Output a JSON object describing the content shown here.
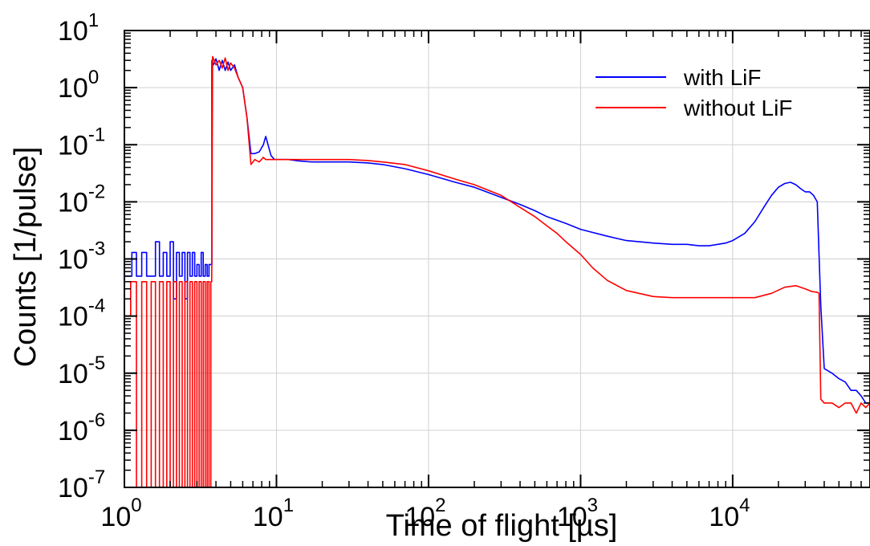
{
  "chart_data": {
    "type": "line",
    "xlabel": "Time of flight [µs]",
    "ylabel": "Counts [1/pulse]",
    "xscale": "log",
    "yscale": "log",
    "xlim": [
      1,
      80000
    ],
    "ylim": [
      1e-07,
      10
    ],
    "grid": true,
    "legend_position": "top-right",
    "x_ticks": [
      {
        "value": 1,
        "base": "10",
        "exp": "0"
      },
      {
        "value": 10,
        "base": "10",
        "exp": "1"
      },
      {
        "value": 100,
        "base": "10",
        "exp": "2"
      },
      {
        "value": 1000,
        "base": "10",
        "exp": "3"
      },
      {
        "value": 10000,
        "base": "10",
        "exp": "4"
      }
    ],
    "y_ticks": [
      {
        "value": 10,
        "base": "10",
        "exp": "1"
      },
      {
        "value": 1,
        "base": "10",
        "exp": "0"
      },
      {
        "value": 0.1,
        "base": "10",
        "exp": "-1"
      },
      {
        "value": 0.01,
        "base": "10",
        "exp": "-2"
      },
      {
        "value": 0.001,
        "base": "10",
        "exp": "-3"
      },
      {
        "value": 0.0001,
        "base": "10",
        "exp": "-4"
      },
      {
        "value": 1e-05,
        "base": "10",
        "exp": "-5"
      },
      {
        "value": 1e-06,
        "base": "10",
        "exp": "-6"
      },
      {
        "value": 1e-07,
        "base": "10",
        "exp": "-7"
      }
    ],
    "series": [
      {
        "name": "with LiF",
        "color": "#0000ff",
        "x": [
          1.0,
          1.12,
          1.2,
          1.3,
          1.4,
          1.5,
          1.6,
          1.7,
          1.8,
          1.9,
          2.0,
          2.1,
          2.2,
          2.3,
          2.4,
          2.5,
          2.6,
          2.7,
          2.8,
          2.9,
          3.0,
          3.1,
          3.2,
          3.3,
          3.4,
          3.5,
          3.6,
          3.75,
          3.76,
          3.85,
          4.0,
          4.2,
          4.4,
          4.6,
          4.8,
          5.0,
          5.3,
          5.6,
          6.0,
          6.4,
          6.8,
          7.2,
          7.7,
          8.2,
          8.5,
          8.8,
          9.2,
          9.7,
          10.5,
          12,
          14,
          17,
          20,
          25,
          30,
          40,
          50,
          70,
          100,
          150,
          200,
          300,
          400,
          500,
          600,
          800,
          1000,
          1500,
          2000,
          3000,
          4000,
          5000,
          6000,
          7000,
          8000,
          9000,
          10000,
          12000,
          14000,
          16000,
          18000,
          20000,
          22000,
          24000,
          26000,
          28000,
          30000,
          32000,
          34000,
          36000,
          37000,
          38000,
          40000,
          45000,
          50000,
          55000,
          60000,
          65000,
          70000,
          75000,
          80000
        ],
        "y": [
          0.0005,
          0.0013,
          0.0005,
          0.0013,
          0.0005,
          0.0005,
          0.002,
          0.0005,
          0.0013,
          0.0005,
          0.002,
          0.0002,
          0.0013,
          0.0005,
          0.0013,
          0.0002,
          0.0013,
          0.0005,
          0.0013,
          0.0005,
          0.0008,
          0.0005,
          0.0013,
          0.0005,
          0.0008,
          0.0005,
          0.0008,
          0.0008,
          3.0,
          2.5,
          3.2,
          2.0,
          3.0,
          2.0,
          2.8,
          2.0,
          2.5,
          1.5,
          1.0,
          0.3,
          0.07,
          0.07,
          0.075,
          0.1,
          0.14,
          0.1,
          0.065,
          0.055,
          0.055,
          0.055,
          0.052,
          0.05,
          0.05,
          0.05,
          0.05,
          0.048,
          0.045,
          0.038,
          0.03,
          0.022,
          0.018,
          0.012,
          0.009,
          0.007,
          0.0055,
          0.0042,
          0.0033,
          0.0025,
          0.0021,
          0.0019,
          0.0018,
          0.0018,
          0.0017,
          0.0017,
          0.0018,
          0.0019,
          0.0021,
          0.0028,
          0.0045,
          0.008,
          0.013,
          0.018,
          0.021,
          0.022,
          0.02,
          0.017,
          0.015,
          0.015,
          0.013,
          0.01,
          0.0012,
          0.00015,
          1.2e-05,
          1e-05,
          8e-06,
          7e-06,
          5e-06,
          5e-06,
          4e-06,
          3e-06,
          3e-06
        ]
      },
      {
        "name": "without LiF",
        "color": "#ff0000",
        "x": [
          1.0,
          1.1,
          1.2,
          1.3,
          1.4,
          1.5,
          1.6,
          1.7,
          1.8,
          1.9,
          2.0,
          2.1,
          2.2,
          2.3,
          2.4,
          2.5,
          2.6,
          2.7,
          2.8,
          2.9,
          3.0,
          3.1,
          3.2,
          3.3,
          3.4,
          3.5,
          3.6,
          3.7,
          3.75,
          3.8,
          4.0,
          4.2,
          4.4,
          4.6,
          4.8,
          5.0,
          5.3,
          5.6,
          6.0,
          6.4,
          6.8,
          7.2,
          7.7,
          8.2,
          8.5,
          9.0,
          10,
          12,
          14,
          17,
          20,
          25,
          30,
          40,
          50,
          70,
          100,
          150,
          200,
          300,
          400,
          500,
          600,
          700,
          800,
          1000,
          1200,
          1500,
          2000,
          3000,
          4000,
          5000,
          7000,
          10000,
          14000,
          18000,
          22000,
          26000,
          30000,
          33000,
          36000,
          37000,
          38000,
          40000,
          45000,
          50000,
          55000,
          60000,
          65000,
          70000,
          75000,
          80000
        ],
        "y": [
          0.0001,
          0.0004,
          1e-07,
          0.0004,
          1e-07,
          0.0004,
          1e-07,
          0.0004,
          1e-07,
          0.0004,
          1e-07,
          0.0004,
          1e-07,
          0.0004,
          1e-07,
          0.0004,
          1e-07,
          0.0004,
          1e-07,
          0.0004,
          1e-07,
          0.0004,
          1e-07,
          0.0004,
          1e-07,
          0.0004,
          1e-07,
          0.0004,
          0.0004,
          3.5,
          2.5,
          3.0,
          2.2,
          3.3,
          2.0,
          2.7,
          2.2,
          1.5,
          1.0,
          0.3,
          0.045,
          0.055,
          0.05,
          0.06,
          0.055,
          0.055,
          0.055,
          0.055,
          0.055,
          0.055,
          0.055,
          0.055,
          0.055,
          0.053,
          0.05,
          0.045,
          0.035,
          0.025,
          0.02,
          0.013,
          0.008,
          0.0055,
          0.0038,
          0.0028,
          0.002,
          0.0012,
          0.0007,
          0.00042,
          0.00028,
          0.00022,
          0.00021,
          0.00021,
          0.00021,
          0.00021,
          0.00021,
          0.00025,
          0.00032,
          0.00034,
          0.0003,
          0.00027,
          0.00026,
          0.00025,
          3.5e-06,
          3e-06,
          3e-06,
          2.5e-06,
          3e-06,
          3e-06,
          2e-06,
          3e-06,
          2.5e-06,
          3e-06
        ]
      }
    ]
  }
}
